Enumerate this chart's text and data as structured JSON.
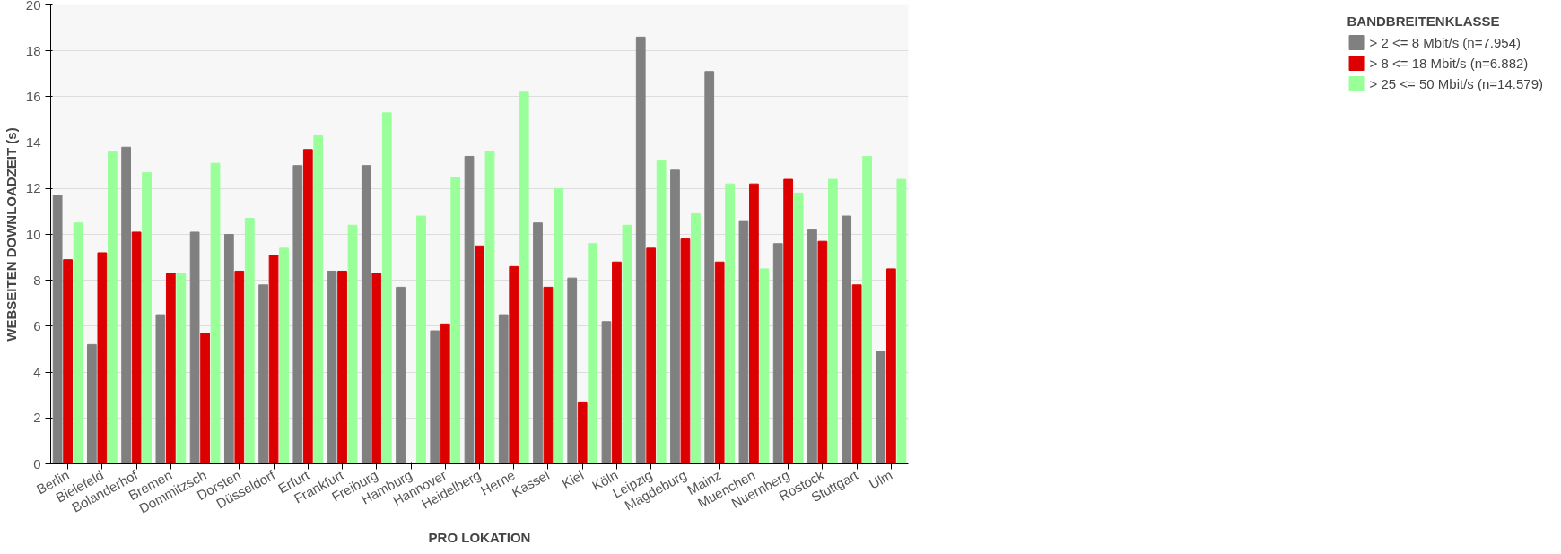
{
  "chart_data": {
    "type": "bar",
    "xlabel": "PRO LOKATION",
    "ylabel": "WEBSEITEN DOWNLOADZEIT (s)",
    "legend_title": "BANDBREITENKLASSE",
    "categories": [
      "Berlin",
      "Bielefeld",
      "Bolanderhof",
      "Bremen",
      "Dommitzsch",
      "Dorsten",
      "Düsseldorf",
      "Erfurt",
      "Frankfurt",
      "Freiburg",
      "Hamburg",
      "Hannover",
      "Heidelberg",
      "Herne",
      "Kassel",
      "Kiel",
      "Köln",
      "Leipzig",
      "Magdeburg",
      "Mainz",
      "Muenchen",
      "Nuernberg",
      "Rostock",
      "Stuttgart",
      "Ulm"
    ],
    "series": [
      {
        "name": "> 2 <= 8 Mbit/s (n=7.954)",
        "color": "#808080",
        "values": [
          11.7,
          5.2,
          13.8,
          6.5,
          10.1,
          10.0,
          7.8,
          13.0,
          8.4,
          13.0,
          7.7,
          5.8,
          13.4,
          6.5,
          10.5,
          8.1,
          6.2,
          18.6,
          12.8,
          17.1,
          10.6,
          9.6,
          10.2,
          10.8,
          4.9
        ]
      },
      {
        "name": "> 8 <= 18 Mbit/s (n=6.882)",
        "color": "#dd0000",
        "values": [
          8.9,
          9.2,
          10.1,
          8.3,
          5.7,
          8.4,
          9.1,
          13.7,
          8.4,
          8.3,
          0,
          6.1,
          9.5,
          8.6,
          7.7,
          2.7,
          8.8,
          9.4,
          9.8,
          8.8,
          12.2,
          12.4,
          9.7,
          7.8,
          8.5
        ]
      },
      {
        "name": "> 25 <= 50 Mbit/s (n=14.579)",
        "color": "#99ff99",
        "values": [
          10.5,
          13.6,
          12.7,
          8.3,
          13.1,
          10.7,
          9.4,
          14.3,
          10.4,
          15.3,
          10.8,
          12.5,
          13.6,
          16.2,
          12.0,
          9.6,
          10.4,
          13.2,
          10.9,
          12.2,
          8.5,
          11.8,
          12.4,
          13.4,
          12.4
        ]
      }
    ],
    "ylim": [
      0,
      20
    ],
    "yticks": [
      0,
      2,
      4,
      6,
      8,
      10,
      12,
      14,
      16,
      18,
      20
    ],
    "grid": "y",
    "legend": "right"
  }
}
